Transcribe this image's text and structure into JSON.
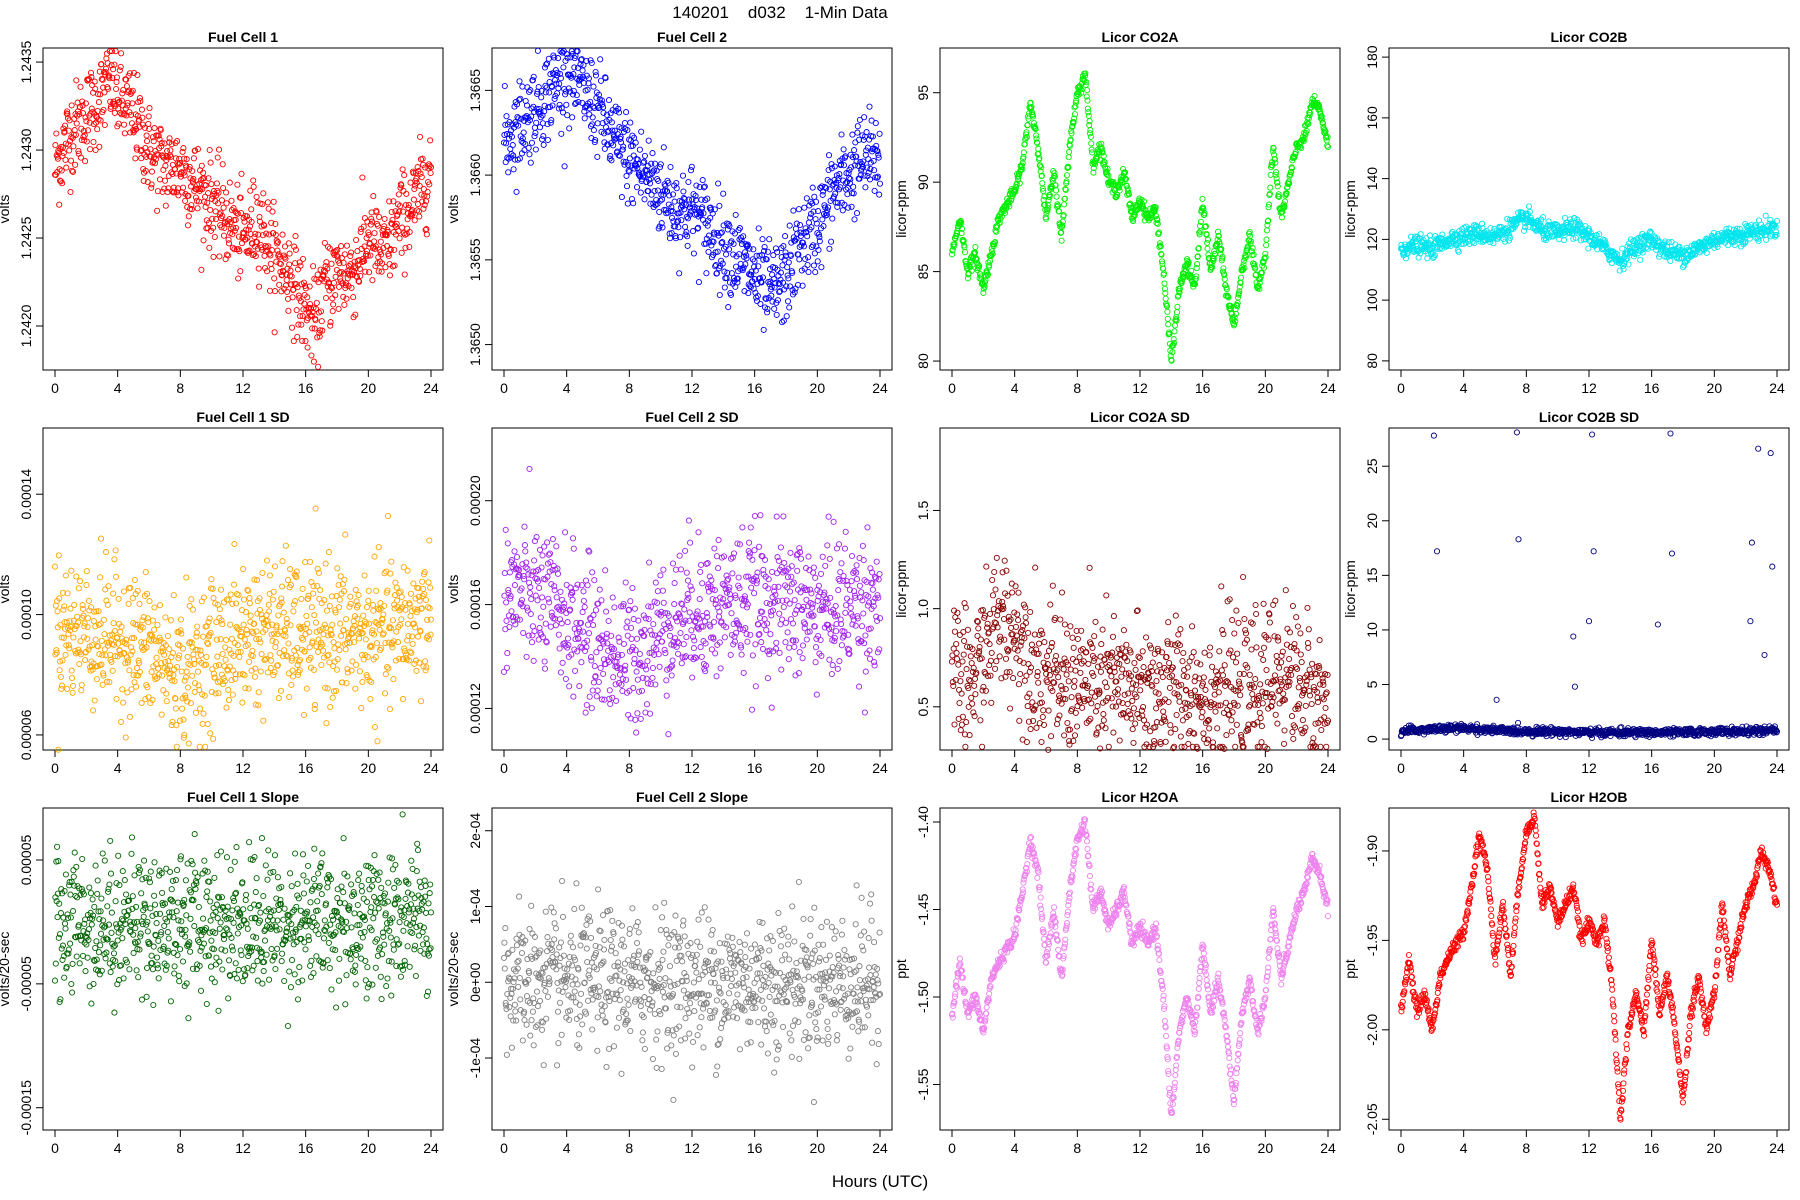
{
  "figure": {
    "title": "140201    d032    1-Min Data",
    "xlabel": "Hours (UTC)"
  },
  "chart_data": [
    {
      "type": "scatter",
      "title": "Fuel Cell 1",
      "ylabel": "volts",
      "color": "#ff0000",
      "xlim": [
        0,
        24
      ],
      "ylim": [
        1.24175,
        1.24358
      ],
      "xticks": [
        "0",
        "4",
        "8",
        "12",
        "16",
        "20",
        "24"
      ],
      "yticks": [
        {
          "v": 1.242,
          "label": "1.2420"
        },
        {
          "v": 1.2425,
          "label": "1.2425"
        },
        {
          "v": 1.243,
          "label": "1.2430"
        },
        {
          "v": 1.2435,
          "label": "1.2435"
        }
      ],
      "x": [
        0,
        1,
        2,
        3,
        3.5,
        4,
        5,
        6,
        7,
        8,
        9,
        10,
        11,
        12,
        13,
        14,
        15,
        16,
        16.8,
        17,
        18,
        19,
        20,
        21,
        22,
        23,
        24
      ],
      "y": [
        1.2429,
        1.2431,
        1.2432,
        1.2433,
        1.2434,
        1.2433,
        1.2432,
        1.243,
        1.2429,
        1.2429,
        1.2428,
        1.2427,
        1.2426,
        1.2425,
        1.2426,
        1.2424,
        1.2423,
        1.2421,
        1.242,
        1.2422,
        1.2423,
        1.2423,
        1.2425,
        1.2424,
        1.2426,
        1.2427,
        1.2429
      ]
    },
    {
      "type": "scatter",
      "title": "Fuel Cell 2",
      "ylabel": "volts",
      "color": "#0000ff",
      "xlim": [
        0,
        24
      ],
      "ylim": [
        1.36485,
        1.36675
      ],
      "xticks": [
        "0",
        "4",
        "8",
        "12",
        "16",
        "20",
        "24"
      ],
      "yticks": [
        {
          "v": 1.365,
          "label": "1.3650"
        },
        {
          "v": 1.3655,
          "label": "1.3655"
        },
        {
          "v": 1.366,
          "label": "1.3660"
        },
        {
          "v": 1.3665,
          "label": "1.3665"
        }
      ],
      "x": [
        0,
        1,
        2,
        3,
        4,
        5,
        6,
        7,
        8,
        9,
        10,
        11,
        12,
        13,
        14,
        15,
        16,
        17,
        18,
        19,
        20,
        21,
        22,
        23,
        24
      ],
      "y": [
        1.3662,
        1.3663,
        1.3664,
        1.3665,
        1.3666,
        1.3665,
        1.3664,
        1.3662,
        1.3661,
        1.366,
        1.3659,
        1.3658,
        1.3658,
        1.3657,
        1.3656,
        1.3655,
        1.3654,
        1.3653,
        1.3654,
        1.3656,
        1.3657,
        1.3659,
        1.366,
        1.3661,
        1.3661
      ]
    },
    {
      "type": "scatter",
      "title": "Licor CO2A",
      "ylabel": "licor-ppm",
      "color": "#00ee00",
      "xlim": [
        0,
        24
      ],
      "ylim": [
        79.5,
        97.5
      ],
      "xticks": [
        "0",
        "4",
        "8",
        "12",
        "16",
        "20",
        "24"
      ],
      "yticks": [
        {
          "v": 80,
          "label": "80"
        },
        {
          "v": 85,
          "label": "85"
        },
        {
          "v": 90,
          "label": "90"
        },
        {
          "v": 95,
          "label": "95"
        }
      ],
      "x": [
        0,
        0.5,
        1,
        1.5,
        2,
        2.5,
        3,
        4,
        4.5,
        5,
        5.5,
        6,
        6.5,
        7,
        7.5,
        8,
        8.5,
        9,
        9.5,
        10,
        10.5,
        11,
        11.5,
        12,
        12.5,
        13,
        13.5,
        14,
        14.5,
        15,
        15.5,
        16,
        16.5,
        17,
        17.5,
        18,
        18.5,
        19,
        19.5,
        20,
        20.5,
        21,
        21.5,
        22,
        22.5,
        23,
        23.5,
        24
      ],
      "y": [
        86,
        88,
        85,
        86,
        84,
        86,
        88,
        89.5,
        91,
        94.5,
        92,
        88,
        90.5,
        87,
        92,
        95,
        96,
        91,
        92,
        90,
        89.5,
        90.5,
        88,
        89,
        88,
        88.5,
        85,
        80,
        84,
        85.5,
        84,
        89,
        85,
        87,
        84,
        82,
        85,
        87,
        84,
        86,
        92,
        88,
        90,
        92,
        92.5,
        94.5,
        94,
        92
      ]
    },
    {
      "type": "scatter",
      "title": "Licor CO2B",
      "ylabel": "licor-ppm",
      "color": "#00e5ee",
      "xlim": [
        0,
        24
      ],
      "ylim": [
        77,
        183
      ],
      "xticks": [
        "0",
        "4",
        "8",
        "12",
        "16",
        "20",
        "24"
      ],
      "yticks": [
        {
          "v": 80,
          "label": "80"
        },
        {
          "v": 100,
          "label": "100"
        },
        {
          "v": 120,
          "label": "120"
        },
        {
          "v": 140,
          "label": "140"
        },
        {
          "v": 160,
          "label": "160"
        },
        {
          "v": 180,
          "label": "180"
        }
      ],
      "x": [
        0,
        1,
        2,
        3,
        4,
        5,
        6,
        7,
        8,
        9,
        10,
        11,
        12,
        13,
        14,
        15,
        16,
        17,
        18,
        19,
        20,
        21,
        22,
        23,
        24
      ],
      "y": [
        117,
        118,
        117,
        120,
        121,
        122,
        121,
        124,
        127,
        123,
        122,
        124,
        121,
        117,
        113,
        118,
        120,
        116,
        115,
        117,
        120,
        121,
        122,
        123,
        124
      ]
    },
    {
      "type": "scatter",
      "title": "Fuel Cell 1 SD",
      "ylabel": "volts",
      "color": "#ffa500",
      "xlim": [
        0,
        24
      ],
      "ylim": [
        5.5e-05,
        0.000162
      ],
      "xticks": [
        "0",
        "4",
        "8",
        "12",
        "16",
        "20",
        "24"
      ],
      "yticks": [
        {
          "v": 6e-05,
          "label": "0.00006"
        },
        {
          "v": 0.0001,
          "label": "0.00010"
        },
        {
          "v": 0.00014,
          "label": "0.00014"
        }
      ],
      "x": [
        0,
        2,
        4,
        6,
        8,
        10,
        12,
        14,
        16,
        18,
        20,
        22,
        24
      ],
      "y": [
        9.5e-05,
        9.4e-05,
        9.2e-05,
        8.8e-05,
        8e-05,
        8.7e-05,
        9.3e-05,
        9.4e-05,
        9.3e-05,
        9.4e-05,
        9.2e-05,
        9.5e-05,
        0.0001
      ]
    },
    {
      "type": "scatter",
      "title": "Fuel Cell 2 SD",
      "ylabel": "volts",
      "color": "#a020f0",
      "xlim": [
        0,
        24
      ],
      "ylim": [
        0.000104,
        0.000228
      ],
      "xticks": [
        "0",
        "4",
        "8",
        "12",
        "16",
        "20",
        "24"
      ],
      "yticks": [
        {
          "v": 0.00012,
          "label": "0.00012"
        },
        {
          "v": 0.00016,
          "label": "0.00016"
        },
        {
          "v": 0.0002,
          "label": "0.00020"
        }
      ],
      "x": [
        0,
        2,
        4,
        6,
        8,
        10,
        12,
        14,
        16,
        18,
        20,
        22,
        24
      ],
      "y": [
        0.000165,
        0.000163,
        0.000155,
        0.000145,
        0.000138,
        0.00015,
        0.000158,
        0.00016,
        0.000161,
        0.00016,
        0.000158,
        0.00016,
        0.000162
      ]
    },
    {
      "type": "scatter",
      "title": "Licor CO2A SD",
      "ylabel": "licor-ppm",
      "color": "#8b0000",
      "xlim": [
        0,
        24
      ],
      "ylim": [
        0.28,
        1.92
      ],
      "xticks": [
        "0",
        "4",
        "8",
        "12",
        "16",
        "20",
        "24"
      ],
      "yticks": [
        {
          "v": 0.5,
          "label": "0.5"
        },
        {
          "v": 1.0,
          "label": "1.0"
        },
        {
          "v": 1.5,
          "label": "1.5"
        }
      ],
      "x": [
        0,
        1,
        2,
        3,
        4,
        5,
        6,
        8,
        10,
        12,
        14,
        16,
        18,
        20,
        21,
        22,
        23,
        24
      ],
      "y": [
        0.65,
        0.6,
        0.75,
        0.95,
        0.9,
        0.75,
        0.65,
        0.62,
        0.6,
        0.58,
        0.58,
        0.57,
        0.58,
        0.6,
        0.7,
        0.65,
        0.55,
        0.5
      ]
    },
    {
      "type": "scatter",
      "title": "Licor CO2B SD",
      "ylabel": "licor-ppm",
      "color": "#000080",
      "xlim": [
        0,
        24
      ],
      "ylim": [
        -1,
        28.5
      ],
      "xticks": [
        "0",
        "4",
        "8",
        "12",
        "16",
        "20",
        "24"
      ],
      "yticks": [
        {
          "v": 0,
          "label": "0"
        },
        {
          "v": 5,
          "label": "5"
        },
        {
          "v": 10,
          "label": "10"
        },
        {
          "v": 15,
          "label": "15"
        },
        {
          "v": 20,
          "label": "20"
        },
        {
          "v": 25,
          "label": "25"
        }
      ],
      "x": [
        0,
        2,
        4,
        6,
        8,
        10,
        12,
        14,
        16,
        18,
        20,
        22,
        24
      ],
      "y": [
        0.7,
        0.9,
        1.0,
        0.8,
        0.7,
        0.7,
        0.6,
        0.6,
        0.6,
        0.6,
        0.7,
        0.7,
        0.8
      ],
      "outliers_x": [
        2.1,
        2.3,
        7.4,
        7.5,
        12.2,
        12.3,
        17.2,
        17.3,
        22.4,
        22.8,
        23.6,
        23.7,
        11.0,
        12.0,
        16.4,
        22.3,
        23.2,
        6.1,
        11.1
      ],
      "outliers_y": [
        27.8,
        17.2,
        28.1,
        18.3,
        27.9,
        17.2,
        28.0,
        17.0,
        18.0,
        26.6,
        26.2,
        15.8,
        9.4,
        10.8,
        10.5,
        10.8,
        7.7,
        3.6,
        4.8
      ]
    },
    {
      "type": "scatter",
      "title": "Fuel Cell 1 Slope",
      "ylabel": "volts/20-sec",
      "color": "#006400",
      "xlim": [
        0,
        24
      ],
      "ylim": [
        -0.000168,
        9.2e-05
      ],
      "xticks": [
        "0",
        "4",
        "8",
        "12",
        "16",
        "20",
        "24"
      ],
      "yticks": [
        {
          "v": -0.00015,
          "label": "-0.00015"
        },
        {
          "v": -5e-05,
          "label": "-0.00005"
        },
        {
          "v": 5e-05,
          "label": "0.00005"
        }
      ],
      "x": [
        0,
        4,
        8,
        12,
        16,
        20,
        24
      ],
      "y": [
        0,
        0,
        0,
        0,
        0,
        0,
        0
      ]
    },
    {
      "type": "scatter",
      "title": "Fuel Cell 2 Slope",
      "ylabel": "volts/20-sec",
      "color": "#808080",
      "xlim": [
        0,
        24
      ],
      "ylim": [
        -0.000195,
        0.00023
      ],
      "xticks": [
        "0",
        "4",
        "8",
        "12",
        "16",
        "20",
        "24"
      ],
      "yticks": [
        {
          "v": -0.0001,
          "label": "-1e-04"
        },
        {
          "v": 0,
          "label": "0e+00"
        },
        {
          "v": 0.0001,
          "label": "1e-04"
        },
        {
          "v": 0.0002,
          "label": "2e-04"
        }
      ],
      "x": [
        0,
        4,
        8,
        12,
        16,
        20,
        24
      ],
      "y": [
        0,
        0,
        0,
        0,
        0,
        0,
        0
      ]
    },
    {
      "type": "scatter",
      "title": "Licor H2OA",
      "ylabel": "ppt",
      "color": "#ee82ee",
      "xlim": [
        0,
        24
      ],
      "ylim": [
        -1.576,
        -1.392
      ],
      "xticks": [
        "0",
        "4",
        "8",
        "12",
        "16",
        "20",
        "24"
      ],
      "yticks": [
        {
          "v": -1.55,
          "label": "-1.55"
        },
        {
          "v": -1.5,
          "label": "-1.50"
        },
        {
          "v": -1.45,
          "label": "-1.45"
        },
        {
          "v": -1.4,
          "label": "-1.40"
        }
      ],
      "x": [
        0,
        0.5,
        1,
        1.5,
        2,
        2.5,
        3,
        4,
        4.5,
        5,
        5.5,
        6,
        6.5,
        7,
        7.5,
        8,
        8.5,
        9,
        9.5,
        10,
        10.5,
        11,
        11.5,
        12,
        12.5,
        13,
        13.5,
        14,
        14.5,
        15,
        15.5,
        16,
        16.5,
        17,
        17.5,
        18,
        18.5,
        19,
        19.5,
        20,
        20.5,
        21,
        21.5,
        22,
        22.5,
        23,
        23.5,
        24
      ],
      "y": [
        -1.51,
        -1.48,
        -1.51,
        -1.5,
        -1.52,
        -1.49,
        -1.48,
        -1.465,
        -1.44,
        -1.41,
        -1.43,
        -1.48,
        -1.45,
        -1.49,
        -1.44,
        -1.41,
        -1.4,
        -1.45,
        -1.44,
        -1.46,
        -1.45,
        -1.44,
        -1.47,
        -1.46,
        -1.47,
        -1.46,
        -1.5,
        -1.57,
        -1.52,
        -1.5,
        -1.52,
        -1.47,
        -1.51,
        -1.49,
        -1.52,
        -1.56,
        -1.51,
        -1.49,
        -1.52,
        -1.5,
        -1.45,
        -1.49,
        -1.47,
        -1.45,
        -1.44,
        -1.42,
        -1.43,
        -1.45
      ]
    },
    {
      "type": "scatter",
      "title": "Licor H2OB",
      "ylabel": "ppt",
      "color": "#ff0000",
      "xlim": [
        0,
        24
      ],
      "ylim": [
        -2.056,
        -1.876
      ],
      "xticks": [
        "0",
        "4",
        "8",
        "12",
        "16",
        "20",
        "24"
      ],
      "yticks": [
        {
          "v": -2.05,
          "label": "-2.05"
        },
        {
          "v": -2.0,
          "label": "-2.00"
        },
        {
          "v": -1.95,
          "label": "-1.95"
        },
        {
          "v": -1.9,
          "label": "-1.90"
        }
      ],
      "x": [
        0,
        0.5,
        1,
        1.5,
        2,
        2.5,
        3,
        4,
        4.5,
        5,
        5.5,
        6,
        6.5,
        7,
        7.5,
        8,
        8.5,
        9,
        9.5,
        10,
        10.5,
        11,
        11.5,
        12,
        12.5,
        13,
        13.5,
        14,
        14.5,
        15,
        15.5,
        16,
        16.5,
        17,
        17.5,
        18,
        18.5,
        19,
        19.5,
        20,
        20.5,
        21,
        21.5,
        22,
        22.5,
        23,
        23.5,
        24
      ],
      "y": [
        -1.99,
        -1.96,
        -1.99,
        -1.98,
        -2.0,
        -1.97,
        -1.96,
        -1.945,
        -1.92,
        -1.89,
        -1.91,
        -1.96,
        -1.93,
        -1.97,
        -1.92,
        -1.89,
        -1.88,
        -1.93,
        -1.92,
        -1.94,
        -1.93,
        -1.92,
        -1.95,
        -1.94,
        -1.95,
        -1.94,
        -1.98,
        -2.05,
        -2.0,
        -1.98,
        -2.0,
        -1.95,
        -1.99,
        -1.97,
        -2.0,
        -2.04,
        -1.99,
        -1.97,
        -2.0,
        -1.98,
        -1.93,
        -1.97,
        -1.95,
        -1.93,
        -1.92,
        -1.9,
        -1.91,
        -1.93
      ]
    }
  ]
}
